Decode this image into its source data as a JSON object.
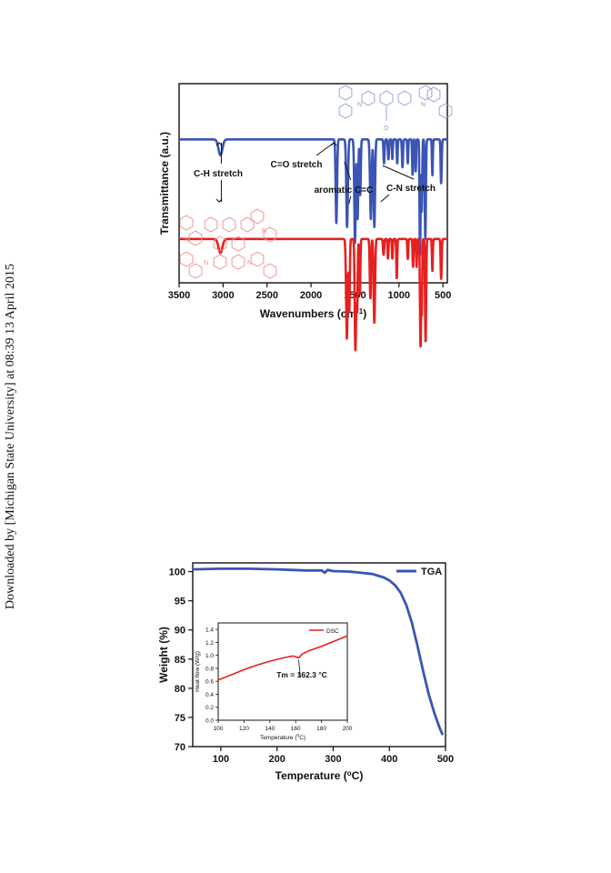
{
  "watermark": "Downloaded by [Michigan State University] at 08:39 13 April 2015",
  "chart_data": [
    {
      "type": "line",
      "xlabel": "Wavenumbers (cm",
      "xlabel_sup": "-1",
      "xlabel_close": ")",
      "ylabel": "Transmittance (a.u.)",
      "xlim": [
        3500,
        450
      ],
      "x_reversed": true,
      "yticks_shown": false,
      "x_ticks": [
        3500,
        3000,
        2500,
        2000,
        1500,
        1000,
        500
      ],
      "annotations": [
        {
          "id": "ch",
          "text": "C-H stretch",
          "x": 3020
        },
        {
          "id": "co",
          "text": "C=O stretch",
          "x": 1710
        },
        {
          "id": "arom",
          "text": "aromatic C=C",
          "x": 1590
        },
        {
          "id": "cn",
          "text": "C-N stretch",
          "x": 1290
        }
      ],
      "colors": {
        "top": "#3a55b4",
        "bottom": "#e62020",
        "structure_top": "#8f9bd6",
        "structure_bottom": "#f08a8a"
      },
      "series": [
        {
          "baseline": 0.72,
          "peaks": [
            [
              3030,
              0.08,
              22
            ],
            [
              1712,
              0.42,
              8
            ],
            [
              1590,
              0.44,
              9
            ],
            [
              1500,
              0.52,
              8
            ],
            [
              1470,
              0.4,
              7
            ],
            [
              1440,
              0.28,
              6
            ],
            [
              1320,
              0.4,
              9
            ],
            [
              1280,
              0.44,
              8
            ],
            [
              1170,
              0.12,
              6
            ],
            [
              1120,
              0.1,
              6
            ],
            [
              1075,
              0.1,
              5
            ],
            [
              1020,
              0.12,
              5
            ],
            [
              960,
              0.14,
              6
            ],
            [
              900,
              0.12,
              5
            ],
            [
              845,
              0.18,
              5
            ],
            [
              810,
              0.16,
              5
            ],
            [
              760,
              0.58,
              6
            ],
            [
              740,
              0.36,
              5
            ],
            [
              700,
              0.5,
              6
            ],
            [
              620,
              0.18,
              5
            ],
            [
              520,
              0.22,
              6
            ]
          ]
        },
        {
          "baseline": 0.22,
          "peaks": [
            [
              3030,
              0.07,
              22
            ],
            [
              1592,
              0.5,
              9
            ],
            [
              1565,
              0.36,
              6
            ],
            [
              1495,
              0.56,
              8
            ],
            [
              1475,
              0.34,
              6
            ],
            [
              1445,
              0.28,
              6
            ],
            [
              1325,
              0.3,
              7
            ],
            [
              1280,
              0.42,
              8
            ],
            [
              1175,
              0.08,
              6
            ],
            [
              1125,
              0.1,
              5
            ],
            [
              1075,
              0.1,
              5
            ],
            [
              1025,
              0.2,
              5
            ],
            [
              900,
              0.1,
              5
            ],
            [
              840,
              0.14,
              5
            ],
            [
              800,
              0.14,
              5
            ],
            [
              755,
              0.54,
              6
            ],
            [
              740,
              0.36,
              5
            ],
            [
              697,
              0.52,
              6
            ],
            [
              620,
              0.16,
              5
            ],
            [
              520,
              0.2,
              6
            ]
          ]
        }
      ]
    },
    {
      "type": "line",
      "xlabel": "Temperature (",
      "xlabel_sup": "o",
      "xlabel_close": "C)",
      "ylabel": "Weight (%)",
      "xlim": [
        50,
        500
      ],
      "ylim": [
        70,
        101.5
      ],
      "x_ticks": [
        100,
        200,
        300,
        400,
        500
      ],
      "y_ticks": [
        70,
        75,
        80,
        85,
        90,
        95,
        100
      ],
      "legend_label": "TGA",
      "legend_position": "top-right",
      "color": "#3a55b4",
      "x": [
        50,
        100,
        150,
        200,
        250,
        280,
        285,
        290,
        300,
        330,
        350,
        370,
        380,
        390,
        400,
        410,
        420,
        430,
        440,
        450,
        460,
        470,
        480,
        490,
        495
      ],
      "y": [
        100.4,
        100.5,
        100.5,
        100.4,
        100.2,
        100.2,
        99.8,
        100.3,
        100.1,
        100.0,
        99.8,
        99.6,
        99.3,
        99.0,
        98.5,
        97.7,
        96.4,
        94.3,
        91.3,
        87.3,
        83.0,
        79.0,
        75.8,
        73.1,
        72.0
      ]
    },
    {
      "type": "line",
      "inset": true,
      "xlabel": "Temperature (",
      "xlabel_sup": "o",
      "xlabel_close": "C)",
      "ylabel": "Heat flow (W/g)",
      "xlim": [
        100,
        200
      ],
      "ylim": [
        0.0,
        1.5
      ],
      "x_ticks": [
        100,
        120,
        140,
        160,
        180,
        200
      ],
      "y_ticks": [
        0.0,
        0.2,
        0.4,
        0.6,
        0.8,
        1.0,
        1.2,
        1.4
      ],
      "legend_label": "DSC",
      "legend_position": "top-right",
      "color": "#e62020",
      "annotation": "Tm = 162.3 °C",
      "annotation_x": 162.3,
      "x": [
        100,
        110,
        120,
        130,
        140,
        150,
        155,
        158,
        160,
        162.3,
        165,
        170,
        180,
        190,
        200
      ],
      "y": [
        0.62,
        0.7,
        0.78,
        0.85,
        0.91,
        0.96,
        0.98,
        0.99,
        0.98,
        0.96,
        1.02,
        1.07,
        1.14,
        1.22,
        1.3
      ]
    }
  ]
}
